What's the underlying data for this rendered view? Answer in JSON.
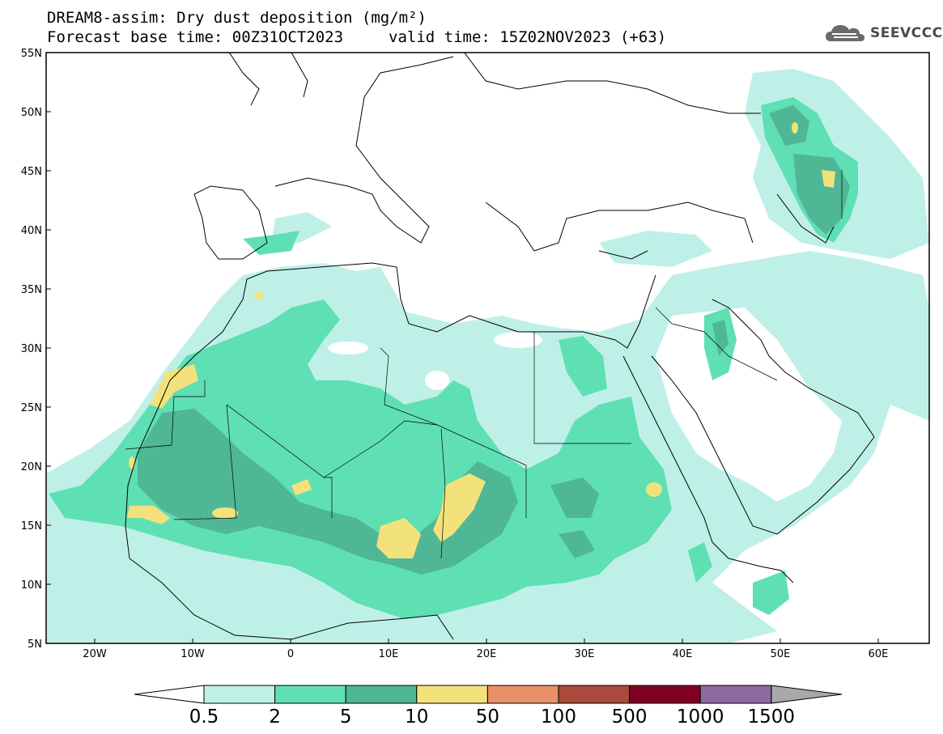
{
  "header": {
    "title_line1": "DREAM8-assim: Dry dust deposition (mg/m²)",
    "title_line2": "Forecast base time: 00Z31OCT2023",
    "valid_time": "valid time: 15Z02NOV2023 (+63)",
    "logo_text": "SEEVCCC",
    "logo_icon": "cloud-icon"
  },
  "map": {
    "lat_labels": [
      "55N",
      "50N",
      "45N",
      "40N",
      "35N",
      "30N",
      "25N",
      "20N",
      "15N",
      "10N",
      "5N"
    ],
    "lon_labels": [
      "20W",
      "10W",
      "0",
      "10E",
      "20E",
      "30E",
      "40E",
      "50E",
      "60E"
    ],
    "colors": {
      "level_1": "#bff0e8",
      "level_2": "#5fdfb4",
      "level_3": "#4fb796",
      "level_4": "#f3e27b",
      "coastline": "#000000"
    }
  },
  "colorbar": {
    "labels": [
      "0.5",
      "2",
      "5",
      "10",
      "50",
      "100",
      "500",
      "1000",
      "1500"
    ],
    "colors": [
      "#bff0e8",
      "#5fdfb4",
      "#4fb796",
      "#f3e27b",
      "#e89068",
      "#a84a3c",
      "#800024",
      "#8e6aa0"
    ],
    "low_end_color": "#ffffff",
    "high_end_color": "#a8a8a8"
  }
}
